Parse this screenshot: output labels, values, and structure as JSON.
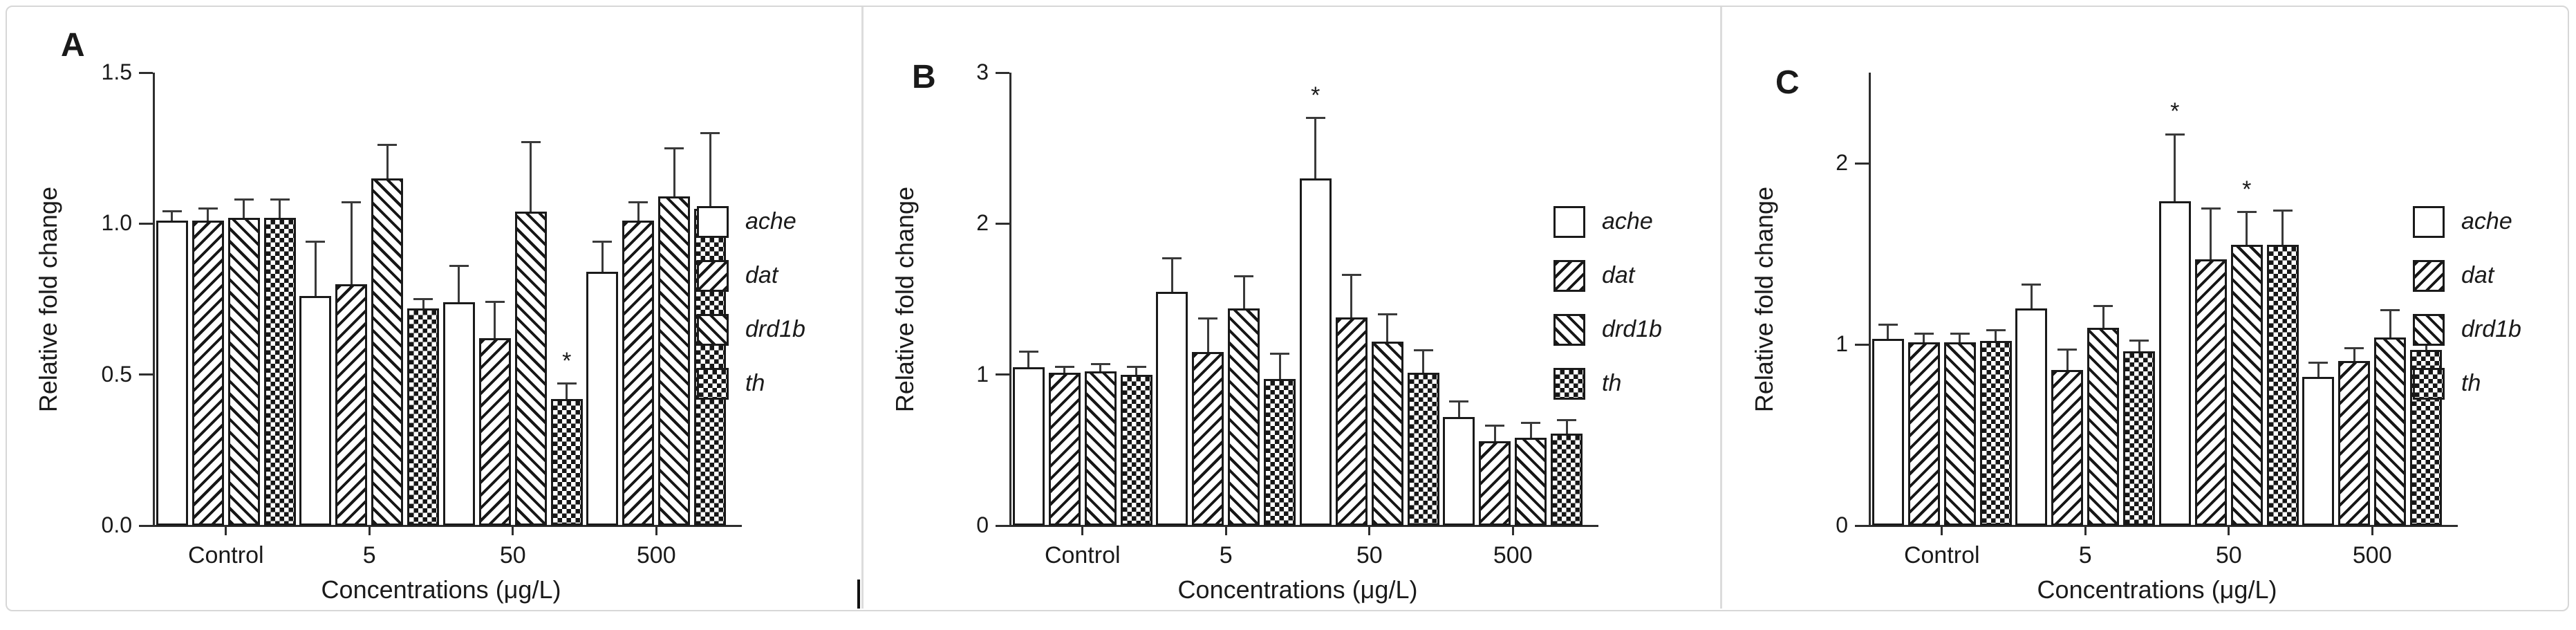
{
  "figure": {
    "background": "#ffffff",
    "border_color": "#d7d7d7",
    "ink_color": "#1a1a1a"
  },
  "chart_data": [
    {
      "panel": "A",
      "type": "bar",
      "ylabel": "Relative fold change",
      "xlabel": "Concentrations (μg/L)",
      "ylim": [
        0,
        1.5
      ],
      "grid": false,
      "legend_position": "right",
      "yticks": [
        {
          "v": 0.0,
          "label": "0.0"
        },
        {
          "v": 0.5,
          "label": "0.5"
        },
        {
          "v": 1.0,
          "label": "1.0"
        },
        {
          "v": 1.5,
          "label": "1.5"
        }
      ],
      "categories": [
        "Control",
        "5",
        "50",
        "500"
      ],
      "series": [
        {
          "name": "ache",
          "pattern": "open",
          "values": [
            1.01,
            0.76,
            0.74,
            0.84
          ],
          "errors": [
            0.03,
            0.18,
            0.12,
            0.1
          ]
        },
        {
          "name": "dat",
          "pattern": "diag-forward",
          "values": [
            1.01,
            0.8,
            0.62,
            1.01
          ],
          "errors": [
            0.04,
            0.27,
            0.12,
            0.06
          ]
        },
        {
          "name": "drd1b",
          "pattern": "diag-backward",
          "values": [
            1.02,
            1.15,
            1.04,
            1.09
          ],
          "errors": [
            0.06,
            0.11,
            0.23,
            0.16
          ]
        },
        {
          "name": "th",
          "pattern": "checker",
          "values": [
            1.02,
            0.72,
            0.42,
            1.05
          ],
          "errors": [
            0.06,
            0.03,
            0.05,
            0.25
          ]
        }
      ],
      "significance": [
        {
          "series": "th",
          "category": "50",
          "symbol": "*"
        }
      ]
    },
    {
      "panel": "B",
      "type": "bar",
      "ylabel": "Relative fold change",
      "xlabel": "Concentrations (μg/L)",
      "ylim": [
        0,
        3
      ],
      "grid": false,
      "legend_position": "right",
      "yticks": [
        {
          "v": 0,
          "label": "0"
        },
        {
          "v": 1,
          "label": "1"
        },
        {
          "v": 2,
          "label": "2"
        },
        {
          "v": 3,
          "label": "3"
        }
      ],
      "categories": [
        "Control",
        "5",
        "50",
        "500"
      ],
      "series": [
        {
          "name": "ache",
          "pattern": "open",
          "values": [
            1.05,
            1.55,
            2.3,
            0.72
          ],
          "errors": [
            0.1,
            0.22,
            0.4,
            0.1
          ]
        },
        {
          "name": "dat",
          "pattern": "diag-forward",
          "values": [
            1.01,
            1.15,
            1.38,
            0.56
          ],
          "errors": [
            0.04,
            0.22,
            0.28,
            0.1
          ]
        },
        {
          "name": "drd1b",
          "pattern": "diag-backward",
          "values": [
            1.02,
            1.44,
            1.22,
            0.58
          ],
          "errors": [
            0.05,
            0.21,
            0.18,
            0.1
          ]
        },
        {
          "name": "th",
          "pattern": "checker",
          "values": [
            1.0,
            0.97,
            1.01,
            0.61
          ],
          "errors": [
            0.05,
            0.17,
            0.15,
            0.09
          ]
        }
      ],
      "significance": [
        {
          "series": "ache",
          "category": "50",
          "symbol": "*"
        },
        {
          "series": "th",
          "category": "500",
          "symbol": "*"
        }
      ]
    },
    {
      "panel": "C",
      "type": "bar",
      "ylabel": "Relative fold change",
      "xlabel": "Concentrations (μg/L)",
      "ylim": [
        0,
        2.5
      ],
      "grid": false,
      "legend_position": "right",
      "yticks": [
        {
          "v": 0,
          "label": "0"
        },
        {
          "v": 1,
          "label": "1"
        },
        {
          "v": 2,
          "label": "2"
        }
      ],
      "categories": [
        "Control",
        "5",
        "50",
        "500"
      ],
      "series": [
        {
          "name": "ache",
          "pattern": "open",
          "values": [
            1.03,
            1.2,
            1.79,
            0.82
          ],
          "errors": [
            0.08,
            0.13,
            0.37,
            0.08
          ]
        },
        {
          "name": "dat",
          "pattern": "diag-forward",
          "values": [
            1.01,
            0.86,
            1.47,
            0.91
          ],
          "errors": [
            0.05,
            0.11,
            0.28,
            0.07
          ]
        },
        {
          "name": "drd1b",
          "pattern": "diag-backward",
          "values": [
            1.01,
            1.09,
            1.55,
            1.04
          ],
          "errors": [
            0.05,
            0.12,
            0.18,
            0.15
          ]
        },
        {
          "name": "th",
          "pattern": "checker",
          "values": [
            1.02,
            0.96,
            1.55,
            0.97
          ],
          "errors": [
            0.06,
            0.06,
            0.19,
            0.11
          ]
        }
      ],
      "significance": [
        {
          "series": "ache",
          "category": "50",
          "symbol": "*"
        },
        {
          "series": "drd1b",
          "category": "50",
          "symbol": "*"
        }
      ]
    }
  ]
}
